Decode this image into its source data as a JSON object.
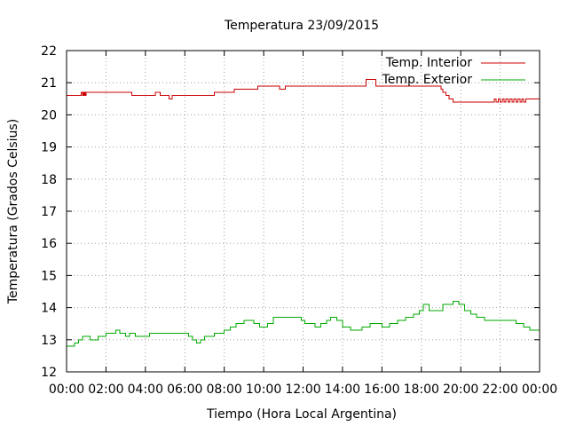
{
  "chart_data": {
    "type": "line",
    "title": "Temperatura 23/09/2015",
    "xlabel": "Tiempo (Hora Local Argentina)",
    "ylabel": "Temperatura (Grados Celsius)",
    "xlim": [
      0,
      24
    ],
    "ylim": [
      12,
      22
    ],
    "grid": true,
    "legend_position": "top-right",
    "x_ticks": [
      0,
      2,
      4,
      6,
      8,
      10,
      12,
      14,
      16,
      18,
      20,
      22,
      24
    ],
    "x_tick_labels": [
      "00:00",
      "02:00",
      "04:00",
      "06:00",
      "08:00",
      "10:00",
      "12:00",
      "14:00",
      "16:00",
      "18:00",
      "20:00",
      "22:00",
      "00:00"
    ],
    "y_ticks": [
      12,
      13,
      14,
      15,
      16,
      17,
      18,
      19,
      20,
      21,
      22
    ],
    "y_tick_labels": [
      "12",
      "13",
      "14",
      "15",
      "16",
      "17",
      "18",
      "19",
      "20",
      "21",
      "22"
    ],
    "step": true,
    "series": [
      {
        "name": "Temp. Interior",
        "color": "#cc0000",
        "x": [
          0,
          0.75,
          0.8,
          0.83,
          0.87,
          0.9,
          0.94,
          0.98,
          1.0,
          3.3,
          4.5,
          4.75,
          5.2,
          5.35,
          5.45,
          7.5,
          8.5,
          9.7,
          10.8,
          11.1,
          15.2,
          15.7,
          19.0,
          19.1,
          19.25,
          19.4,
          19.6,
          19.8,
          21.7,
          21.8,
          21.9,
          22.0,
          22.1,
          22.2,
          22.3,
          22.4,
          22.5,
          22.6,
          22.7,
          22.8,
          22.9,
          23.0,
          23.1,
          23.2,
          23.3,
          24
        ],
        "y": [
          20.6,
          20.7,
          20.6,
          20.7,
          20.6,
          20.7,
          20.6,
          20.7,
          20.7,
          20.6,
          20.7,
          20.6,
          20.5,
          20.6,
          20.6,
          20.7,
          20.8,
          20.9,
          20.8,
          20.9,
          21.1,
          20.9,
          20.8,
          20.7,
          20.6,
          20.5,
          20.4,
          20.4,
          20.5,
          20.4,
          20.5,
          20.4,
          20.5,
          20.4,
          20.5,
          20.4,
          20.5,
          20.4,
          20.5,
          20.4,
          20.5,
          20.4,
          20.5,
          20.4,
          20.5,
          20.5
        ]
      },
      {
        "name": "Temp. Exterior",
        "color": "#00aa00",
        "x": [
          0,
          0.4,
          0.6,
          0.8,
          1.2,
          1.6,
          2.0,
          2.5,
          2.7,
          3.0,
          3.2,
          3.5,
          3.8,
          4.2,
          6.2,
          6.4,
          6.6,
          6.8,
          7.0,
          7.5,
          8.0,
          8.3,
          8.6,
          9.0,
          9.5,
          9.8,
          10.2,
          10.5,
          11.9,
          12.1,
          12.6,
          12.9,
          13.2,
          13.4,
          13.7,
          14.0,
          14.4,
          15.0,
          15.4,
          16.0,
          16.4,
          16.8,
          17.2,
          17.6,
          17.9,
          18.1,
          18.4,
          19.1,
          19.6,
          19.9,
          20.2,
          20.5,
          20.8,
          21.2,
          21.5,
          21.8,
          22.8,
          23.2,
          23.5,
          24
        ],
        "y": [
          12.8,
          12.9,
          13.0,
          13.1,
          13.0,
          13.1,
          13.2,
          13.3,
          13.2,
          13.1,
          13.2,
          13.1,
          13.1,
          13.2,
          13.1,
          13.0,
          12.9,
          13.0,
          13.1,
          13.2,
          13.3,
          13.4,
          13.5,
          13.6,
          13.5,
          13.4,
          13.5,
          13.7,
          13.6,
          13.5,
          13.4,
          13.5,
          13.6,
          13.7,
          13.6,
          13.4,
          13.3,
          13.4,
          13.5,
          13.4,
          13.5,
          13.6,
          13.7,
          13.8,
          13.9,
          14.1,
          13.9,
          14.1,
          14.2,
          14.1,
          13.9,
          13.8,
          13.7,
          13.6,
          13.6,
          13.6,
          13.5,
          13.4,
          13.3,
          13.3
        ]
      }
    ]
  }
}
